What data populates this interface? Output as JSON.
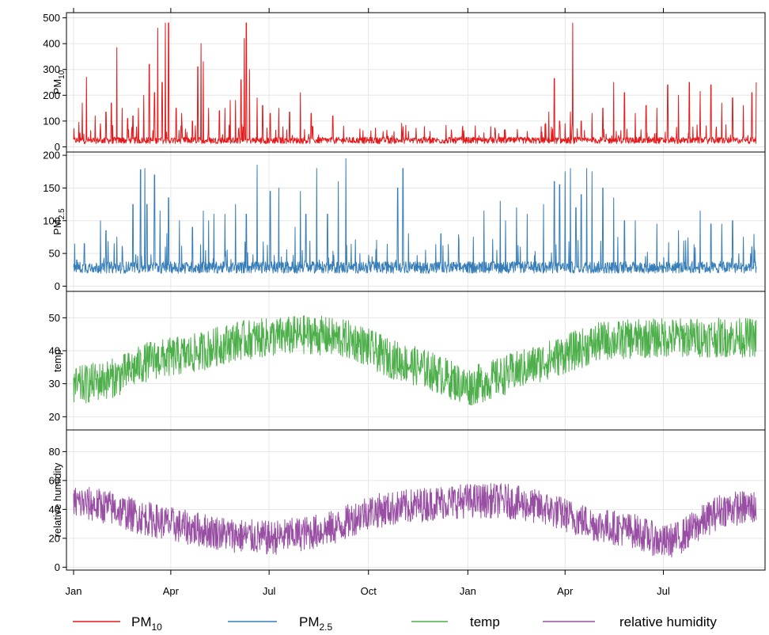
{
  "chart_data": {
    "type": "line",
    "x_axis": {
      "ticks": [
        "Jan",
        "Apr",
        "Jul",
        "Oct",
        "Jan",
        "Apr",
        "Jul"
      ],
      "tick_days": [
        0,
        90,
        181,
        273,
        365,
        455,
        546
      ],
      "range_days": [
        0,
        635
      ],
      "grid": true
    },
    "panels": [
      {
        "key": "pm10",
        "ylabel": "PM10",
        "ylabel_main": "PM",
        "ylabel_sub": "10",
        "color": "#e41a1c",
        "ylim": [
          -20,
          520
        ],
        "yticks": [
          0,
          100,
          200,
          300,
          400,
          500
        ],
        "baseline": 20,
        "noise": 25,
        "max": 480,
        "spikes": [
          [
            5,
            95
          ],
          [
            8,
            170
          ],
          [
            12,
            270
          ],
          [
            20,
            120
          ],
          [
            25,
            90
          ],
          [
            30,
            135
          ],
          [
            35,
            170
          ],
          [
            40,
            385
          ],
          [
            45,
            150
          ],
          [
            50,
            110
          ],
          [
            55,
            120
          ],
          [
            60,
            150
          ],
          [
            65,
            200
          ],
          [
            70,
            320
          ],
          [
            75,
            210
          ],
          [
            78,
            460
          ],
          [
            82,
            250
          ],
          [
            85,
            480
          ],
          [
            88,
            480
          ],
          [
            95,
            150
          ],
          [
            100,
            130
          ],
          [
            110,
            100
          ],
          [
            115,
            310
          ],
          [
            118,
            400
          ],
          [
            120,
            330
          ],
          [
            125,
            150
          ],
          [
            135,
            140
          ],
          [
            140,
            150
          ],
          [
            145,
            180
          ],
          [
            150,
            180
          ],
          [
            155,
            260
          ],
          [
            158,
            420
          ],
          [
            160,
            480
          ],
          [
            163,
            300
          ],
          [
            170,
            190
          ],
          [
            175,
            160
          ],
          [
            182,
            130
          ],
          [
            190,
            150
          ],
          [
            200,
            135
          ],
          [
            210,
            210
          ],
          [
            220,
            130
          ],
          [
            240,
            120
          ],
          [
            250,
            80
          ],
          [
            265,
            70
          ],
          [
            290,
            65
          ],
          [
            310,
            60
          ],
          [
            330,
            60
          ],
          [
            350,
            50
          ],
          [
            380,
            55
          ],
          [
            400,
            50
          ],
          [
            420,
            60
          ],
          [
            440,
            135
          ],
          [
            445,
            265
          ],
          [
            450,
            100
          ],
          [
            455,
            90
          ],
          [
            460,
            135
          ],
          [
            462,
            480
          ],
          [
            470,
            100
          ],
          [
            480,
            130
          ],
          [
            490,
            150
          ],
          [
            500,
            250
          ],
          [
            510,
            210
          ],
          [
            520,
            130
          ],
          [
            530,
            160
          ],
          [
            540,
            150
          ],
          [
            550,
            240
          ],
          [
            560,
            200
          ],
          [
            570,
            250
          ],
          [
            580,
            215
          ],
          [
            590,
            240
          ],
          [
            600,
            170
          ],
          [
            610,
            190
          ],
          [
            620,
            160
          ],
          [
            628,
            210
          ],
          [
            632,
            250
          ]
        ]
      },
      {
        "key": "pm25",
        "ylabel": "PM2.5",
        "ylabel_main": "PM",
        "ylabel_sub": "2.5",
        "color": "#377eb8",
        "ylim": [
          -8,
          205
        ],
        "yticks": [
          0,
          50,
          100,
          150,
          200
        ],
        "baseline": 25,
        "noise": 18,
        "max": 195,
        "spikes": [
          [
            3,
            40
          ],
          [
            10,
            65
          ],
          [
            25,
            100
          ],
          [
            30,
            85
          ],
          [
            40,
            75
          ],
          [
            55,
            125
          ],
          [
            62,
            178
          ],
          [
            66,
            180
          ],
          [
            68,
            125
          ],
          [
            75,
            170
          ],
          [
            80,
            115
          ],
          [
            88,
            135
          ],
          [
            98,
            100
          ],
          [
            110,
            90
          ],
          [
            120,
            115
          ],
          [
            125,
            100
          ],
          [
            130,
            110
          ],
          [
            140,
            110
          ],
          [
            150,
            125
          ],
          [
            160,
            110
          ],
          [
            170,
            185
          ],
          [
            182,
            145
          ],
          [
            190,
            150
          ],
          [
            205,
            90
          ],
          [
            210,
            145
          ],
          [
            215,
            110
          ],
          [
            225,
            180
          ],
          [
            235,
            110
          ],
          [
            245,
            160
          ],
          [
            252,
            195
          ],
          [
            265,
            50
          ],
          [
            300,
            150
          ],
          [
            305,
            180
          ],
          [
            310,
            80
          ],
          [
            340,
            80
          ],
          [
            370,
            75
          ],
          [
            380,
            115
          ],
          [
            395,
            130
          ],
          [
            400,
            100
          ],
          [
            410,
            120
          ],
          [
            420,
            110
          ],
          [
            435,
            125
          ],
          [
            445,
            160
          ],
          [
            450,
            155
          ],
          [
            455,
            175
          ],
          [
            460,
            180
          ],
          [
            465,
            120
          ],
          [
            470,
            140
          ],
          [
            475,
            180
          ],
          [
            480,
            175
          ],
          [
            490,
            150
          ],
          [
            500,
            135
          ],
          [
            510,
            100
          ],
          [
            520,
            100
          ],
          [
            540,
            95
          ],
          [
            560,
            85
          ],
          [
            580,
            115
          ],
          [
            590,
            95
          ],
          [
            600,
            95
          ],
          [
            610,
            100
          ],
          [
            620,
            75
          ],
          [
            628,
            60
          ]
        ]
      },
      {
        "key": "temp",
        "ylabel": "temp",
        "color": "#4daf4a",
        "ylim": [
          16,
          58
        ],
        "yticks": [
          20,
          30,
          40,
          50
        ],
        "seasonal": [
          [
            0,
            29
          ],
          [
            40,
            32
          ],
          [
            70,
            37
          ],
          [
            110,
            39
          ],
          [
            150,
            43
          ],
          [
            181,
            44
          ],
          [
            220,
            45
          ],
          [
            260,
            43
          ],
          [
            290,
            38
          ],
          [
            330,
            34
          ],
          [
            365,
            29
          ],
          [
            385,
            31
          ],
          [
            420,
            35
          ],
          [
            455,
            39
          ],
          [
            490,
            43
          ],
          [
            546,
            44
          ],
          [
            600,
            44
          ],
          [
            635,
            44
          ]
        ],
        "noise": 6
      },
      {
        "key": "rh",
        "ylabel": "relative humidity",
        "color": "#984ea3",
        "ylim": [
          -2,
          95
        ],
        "yticks": [
          0,
          20,
          40,
          60,
          80
        ],
        "seasonal": [
          [
            0,
            45
          ],
          [
            30,
            42
          ],
          [
            60,
            35
          ],
          [
            100,
            28
          ],
          [
            150,
            22
          ],
          [
            181,
            20
          ],
          [
            220,
            24
          ],
          [
            245,
            28
          ],
          [
            270,
            38
          ],
          [
            310,
            42
          ],
          [
            340,
            45
          ],
          [
            365,
            46
          ],
          [
            400,
            46
          ],
          [
            440,
            40
          ],
          [
            480,
            30
          ],
          [
            520,
            25
          ],
          [
            546,
            17
          ],
          [
            560,
            20
          ],
          [
            580,
            30
          ],
          [
            600,
            40
          ],
          [
            635,
            42
          ]
        ],
        "noise": 12
      }
    ],
    "legend": {
      "placement": "bottom",
      "items": [
        {
          "label": "PM10",
          "main": "PM",
          "sub": "10",
          "color": "#e41a1c"
        },
        {
          "label": "PM2.5",
          "main": "PM",
          "sub": "2.5",
          "color": "#377eb8"
        },
        {
          "label": "temp",
          "color": "#4daf4a"
        },
        {
          "label": "relative humidity",
          "color": "#984ea3"
        }
      ]
    }
  }
}
